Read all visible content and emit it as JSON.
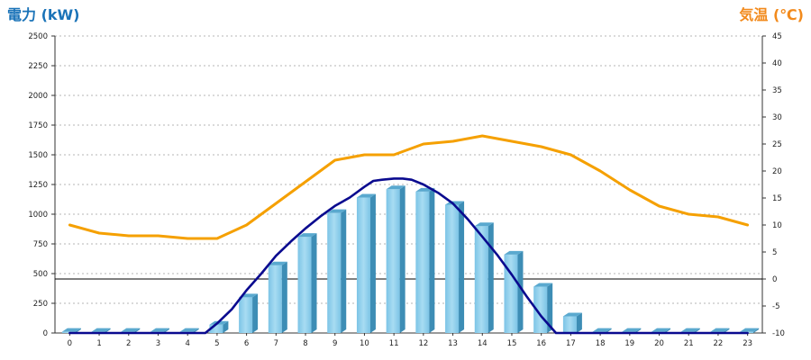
{
  "chart_data": {
    "type": "bar",
    "title": "",
    "left_axis_label": "電力 (kW)",
    "right_axis_label": "気温 (℃)",
    "left_axis_color": "#1a73b8",
    "right_axis_color": "#f28a1c",
    "categories": [
      "0",
      "1",
      "2",
      "3",
      "4",
      "5",
      "6",
      "7",
      "8",
      "9",
      "10",
      "11",
      "12",
      "13",
      "14",
      "15",
      "16",
      "17",
      "18",
      "19",
      "20",
      "21",
      "22",
      "23"
    ],
    "y_left": {
      "min": 0,
      "max": 2500,
      "ticks": [
        "0",
        "250",
        "500",
        "750",
        "1000",
        "1250",
        "1500",
        "1750",
        "2000",
        "2250",
        "2500"
      ]
    },
    "y_right": {
      "min": -10,
      "max": 45,
      "ticks": [
        "-10",
        "-5",
        "0",
        "5",
        "10",
        "15",
        "20",
        "25",
        "30",
        "35",
        "40",
        "45"
      ]
    },
    "grid": true,
    "series": [
      {
        "type": "bar",
        "axis": "left",
        "color": "#8ecfea",
        "values": [
          10,
          10,
          10,
          10,
          10,
          70,
          300,
          570,
          810,
          1010,
          1140,
          1210,
          1190,
          1080,
          900,
          660,
          390,
          140,
          10,
          10,
          10,
          10,
          10,
          10
        ]
      },
      {
        "type": "line",
        "axis": "left",
        "color": "#0a0a8f",
        "x": [
          0,
          1,
          2,
          3,
          4,
          4.6,
          5,
          5.5,
          6,
          6.5,
          7,
          7.5,
          8,
          8.5,
          9,
          9.5,
          10,
          10.3,
          10.6,
          11,
          11.3,
          11.6,
          12,
          12.5,
          13,
          13.5,
          14,
          14.5,
          15,
          15.5,
          16,
          16.5,
          17,
          17.5,
          18,
          19,
          20,
          21,
          22,
          23
        ],
        "values": [
          0,
          0,
          0,
          0,
          0,
          0,
          80,
          200,
          360,
          500,
          650,
          770,
          880,
          980,
          1070,
          1140,
          1230,
          1280,
          1290,
          1300,
          1300,
          1290,
          1250,
          1180,
          1090,
          960,
          810,
          660,
          490,
          310,
          140,
          0,
          0,
          0,
          0,
          0,
          0,
          0,
          0,
          0
        ]
      },
      {
        "type": "line",
        "axis": "right",
        "color": "#f5a000",
        "values": [
          10,
          8.5,
          8,
          8,
          7.5,
          7.5,
          10,
          14,
          18,
          22,
          23,
          23,
          25,
          25.5,
          26.5,
          25.5,
          24.5,
          23,
          20,
          16.5,
          13.5,
          12,
          11.5,
          10
        ]
      }
    ],
    "reference_line": {
      "axis": "right",
      "value": 0,
      "color": "#000000"
    }
  }
}
